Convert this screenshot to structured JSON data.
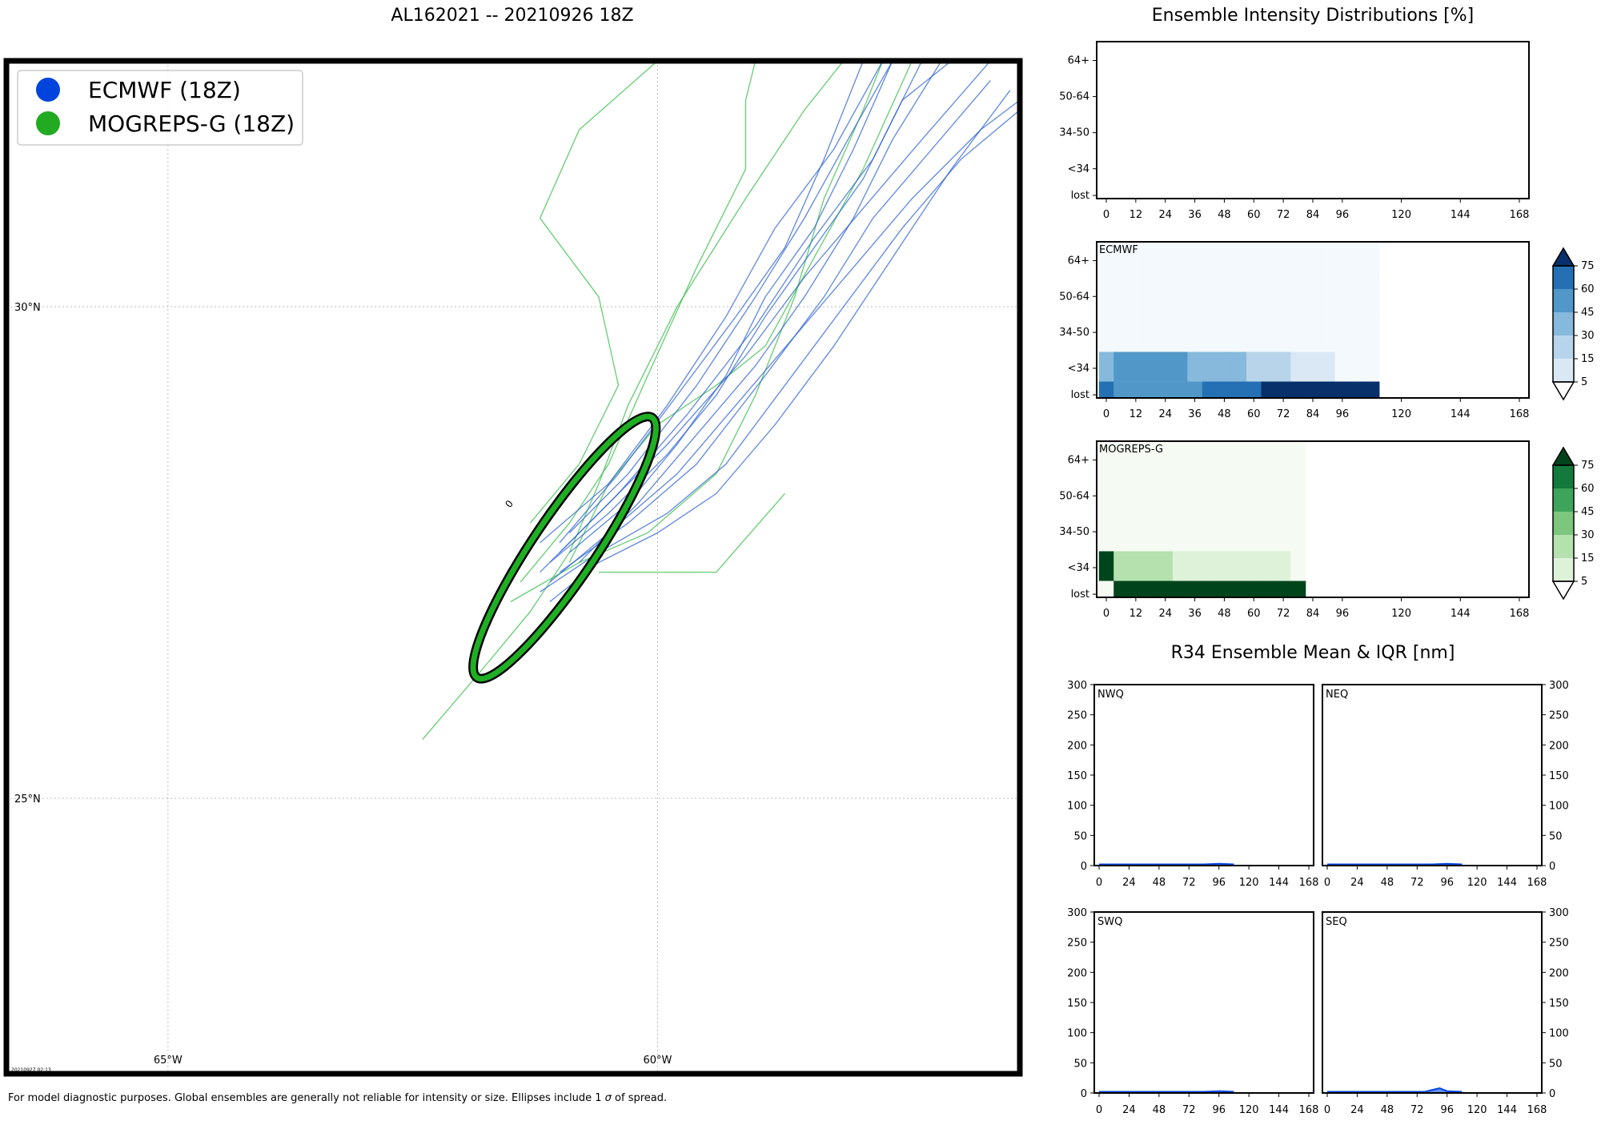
{
  "page": {
    "main_title": "AL162021 -- 20210926 18Z",
    "intensity_title": "Ensemble Intensity Distributions [%]",
    "r34_title": "R34 Ensemble Mean & IQR [nm]",
    "footnote_prefix": "For model diagnostic purposes. Global ensembles are generally not reliable for intensity or size. Ellipses include 1 ",
    "footnote_sigma": "σ",
    "footnote_suffix": " of spread.",
    "timestamp": "20210927 02:13"
  },
  "colors": {
    "ecmwf_track": "#2a5fd6",
    "ecmwf_marker": "#0044dd",
    "mogreps_track": "#33bb44",
    "mogreps_marker": "#22aa22",
    "ellipse_fill": "#1fae24"
  },
  "map": {
    "legend": [
      {
        "label": "ECMWF (18Z)",
        "color": "#0044dd"
      },
      {
        "label": "MOGREPS-G (18Z)",
        "color": "#22aa22"
      }
    ],
    "lat_labels": [
      {
        "value": 30,
        "label": "30°N"
      },
      {
        "value": 25,
        "label": "25°N"
      }
    ],
    "lon_labels": [
      {
        "value": -65,
        "label": "65°W"
      },
      {
        "value": -60,
        "label": "60°W"
      }
    ],
    "ellipse_label": "0",
    "ellipse": {
      "lon": -60.95,
      "lat": 27.55,
      "major_deg": 2.5,
      "minor_deg": 0.5,
      "angle": 40
    }
  },
  "chart_data": [
    {
      "type": "line",
      "id": "track_map",
      "title": "AL162021 -- 20210926 18Z",
      "xlim": [
        -66.65,
        -56.3
      ],
      "ylim": [
        22.2,
        32.5
      ],
      "series": [
        {
          "name": "ECMWF (18Z)",
          "tracks": [
            [
              [
                -61.2,
                27.3
              ],
              [
                -60.6,
                27.9
              ],
              [
                -59.9,
                28.6
              ],
              [
                -59.1,
                29.5
              ],
              [
                -58.5,
                30.3
              ],
              [
                -57.9,
                31.0
              ],
              [
                -57.3,
                31.7
              ],
              [
                -56.6,
                32.5
              ]
            ],
            [
              [
                -61.0,
                27.5
              ],
              [
                -60.4,
                28.1
              ],
              [
                -59.7,
                28.9
              ],
              [
                -59.0,
                29.8
              ],
              [
                -58.4,
                30.7
              ],
              [
                -57.8,
                31.5
              ],
              [
                -57.3,
                32.5
              ]
            ],
            [
              [
                -61.1,
                27.2
              ],
              [
                -60.5,
                27.7
              ],
              [
                -59.8,
                28.3
              ],
              [
                -59.2,
                29.0
              ],
              [
                -58.6,
                29.7
              ],
              [
                -58.0,
                30.4
              ],
              [
                -57.4,
                31.1
              ],
              [
                -56.7,
                31.8
              ],
              [
                -56.3,
                32.1
              ]
            ],
            [
              [
                -61.2,
                27.6
              ],
              [
                -60.5,
                28.2
              ],
              [
                -59.9,
                29.0
              ],
              [
                -59.3,
                29.9
              ],
              [
                -58.8,
                30.8
              ],
              [
                -58.2,
                31.6
              ],
              [
                -57.7,
                32.5
              ]
            ],
            [
              [
                -60.8,
                27.4
              ],
              [
                -60.2,
                28.0
              ],
              [
                -59.6,
                28.7
              ],
              [
                -59.0,
                29.4
              ],
              [
                -58.5,
                30.1
              ],
              [
                -58.0,
                30.9
              ],
              [
                -57.6,
                31.7
              ],
              [
                -57.1,
                32.5
              ]
            ],
            [
              [
                -61.1,
                27.0
              ],
              [
                -60.6,
                27.4
              ],
              [
                -60.0,
                27.7
              ],
              [
                -59.4,
                28.1
              ],
              [
                -58.8,
                28.8
              ],
              [
                -58.2,
                29.6
              ],
              [
                -57.6,
                30.5
              ],
              [
                -57.0,
                31.4
              ],
              [
                -56.4,
                32.2
              ]
            ],
            [
              [
                -60.9,
                27.7
              ],
              [
                -60.3,
                28.3
              ],
              [
                -59.6,
                29.2
              ],
              [
                -59.0,
                30.1
              ],
              [
                -58.5,
                30.9
              ],
              [
                -58.0,
                31.8
              ],
              [
                -57.6,
                32.5
              ]
            ],
            [
              [
                -61.0,
                27.3
              ],
              [
                -60.3,
                27.8
              ],
              [
                -59.6,
                28.4
              ],
              [
                -58.9,
                29.3
              ],
              [
                -58.3,
                30.1
              ],
              [
                -57.8,
                30.9
              ],
              [
                -57.2,
                31.6
              ],
              [
                -56.6,
                32.3
              ]
            ],
            [
              [
                -61.2,
                27.1
              ],
              [
                -60.6,
                27.5
              ],
              [
                -59.9,
                27.9
              ],
              [
                -59.3,
                28.4
              ],
              [
                -58.7,
                29.2
              ],
              [
                -58.1,
                30.0
              ],
              [
                -57.5,
                30.8
              ],
              [
                -56.9,
                31.5
              ],
              [
                -56.3,
                32.0
              ]
            ],
            [
              [
                -61.0,
                27.6
              ],
              [
                -60.4,
                28.3
              ],
              [
                -59.8,
                29.1
              ],
              [
                -59.2,
                29.9
              ],
              [
                -58.7,
                30.6
              ],
              [
                -58.3,
                31.5
              ],
              [
                -57.9,
                32.5
              ]
            ],
            [
              [
                -60.9,
                27.5
              ],
              [
                -60.3,
                28.0
              ],
              [
                -59.8,
                28.6
              ],
              [
                -59.3,
                29.3
              ],
              [
                -58.9,
                30.1
              ],
              [
                -58.4,
                30.8
              ],
              [
                -58.0,
                31.6
              ],
              [
                -57.6,
                32.5
              ]
            ],
            [
              [
                -61.1,
                27.4
              ],
              [
                -60.5,
                27.9
              ],
              [
                -59.9,
                28.5
              ],
              [
                -59.4,
                29.1
              ],
              [
                -58.9,
                29.9
              ],
              [
                -58.4,
                30.6
              ],
              [
                -57.9,
                31.3
              ],
              [
                -57.5,
                32.1
              ],
              [
                -57.0,
                32.5
              ]
            ]
          ]
        },
        {
          "name": "MOGREPS-G (18Z)",
          "tracks": [
            [
              [
                -62.4,
                25.6
              ],
              [
                -61.8,
                26.3
              ],
              [
                -61.3,
                26.9
              ],
              [
                -60.9,
                27.5
              ],
              [
                -60.6,
                28.2
              ],
              [
                -60.3,
                29.0
              ],
              [
                -59.8,
                30.0
              ],
              [
                -59.1,
                31.1
              ],
              [
                -58.5,
                32.0
              ],
              [
                -58.1,
                32.5
              ]
            ],
            [
              [
                -61.4,
                27.2
              ],
              [
                -60.9,
                27.8
              ],
              [
                -60.5,
                28.4
              ],
              [
                -60.1,
                29.3
              ],
              [
                -59.6,
                30.4
              ],
              [
                -59.1,
                31.4
              ],
              [
                -59.1,
                32.1
              ],
              [
                -59.0,
                32.5
              ]
            ],
            [
              [
                -61.5,
                27.0
              ],
              [
                -60.8,
                27.4
              ],
              [
                -60.1,
                27.7
              ],
              [
                -59.4,
                28.3
              ],
              [
                -59.0,
                29.1
              ],
              [
                -58.6,
                30.1
              ],
              [
                -58.3,
                31.1
              ],
              [
                -57.9,
                32.0
              ],
              [
                -57.7,
                32.5
              ]
            ],
            [
              [
                -61.3,
                27.8
              ],
              [
                -60.8,
                28.4
              ],
              [
                -60.4,
                29.2
              ],
              [
                -60.6,
                30.1
              ],
              [
                -61.2,
                30.9
              ],
              [
                -60.8,
                31.8
              ],
              [
                -60.0,
                32.5
              ]
            ],
            [
              [
                -60.9,
                27.4
              ],
              [
                -60.5,
                28.2
              ],
              [
                -60.0,
                28.8
              ],
              [
                -59.4,
                29.2
              ],
              [
                -58.9,
                29.6
              ],
              [
                -58.4,
                30.5
              ],
              [
                -57.9,
                31.4
              ],
              [
                -57.4,
                32.5
              ]
            ],
            [
              [
                -60.6,
                27.3
              ],
              [
                -59.4,
                27.3
              ],
              [
                -58.7,
                28.1
              ]
            ]
          ]
        }
      ]
    },
    {
      "type": "heatmap",
      "id": "intensity_ecmwf",
      "title": "ECMWF",
      "categories": [
        "lost",
        "<34",
        "34-50",
        "50-64",
        "64+"
      ],
      "x_ticks": [
        0,
        12,
        24,
        36,
        48,
        60,
        72,
        84,
        96,
        120,
        144,
        168
      ],
      "bin_width_hours": 6,
      "rows": {
        "64+": [
          2,
          2,
          2,
          2,
          2,
          2,
          2,
          2,
          2,
          2,
          2,
          2,
          2,
          2,
          2,
          2,
          2,
          2,
          2
        ],
        "50-64": [
          2,
          2,
          2,
          2,
          2,
          2,
          2,
          2,
          2,
          2,
          2,
          2,
          2,
          2,
          2,
          2,
          2,
          2,
          2
        ],
        "34-50": [
          2,
          2,
          2,
          2,
          2,
          2,
          2,
          2,
          2,
          2,
          2,
          2,
          2,
          2,
          2,
          2,
          2,
          2,
          2
        ],
        "<34": [
          35,
          50,
          50,
          50,
          50,
          50,
          38,
          38,
          38,
          38,
          22,
          22,
          22,
          14,
          14,
          14,
          2,
          2,
          2
        ],
        "lost": [
          68,
          50,
          50,
          50,
          50,
          50,
          50,
          66,
          66,
          66,
          66,
          80,
          80,
          80,
          80,
          80,
          80,
          80,
          80
        ]
      },
      "colorbar": {
        "levels": [
          5,
          15,
          30,
          45,
          60,
          75
        ],
        "colors": [
          "#dae8f5",
          "#b8d4ea",
          "#86b9dc",
          "#5198c9",
          "#2570b4",
          "#0d4a93"
        ],
        "over": "#08306b",
        "under": "#ffffff",
        "base": "#f4f9fe"
      }
    },
    {
      "type": "heatmap",
      "id": "intensity_mogreps",
      "title": "MOGREPS-G",
      "categories": [
        "lost",
        "<34",
        "34-50",
        "50-64",
        "64+"
      ],
      "x_ticks": [
        0,
        12,
        24,
        36,
        48,
        60,
        72,
        84,
        96,
        120,
        144,
        168
      ],
      "bin_width_hours": 6,
      "rows": {
        "64+": [
          2,
          2,
          2,
          2,
          2,
          2,
          2,
          2,
          2,
          2,
          2,
          2,
          2,
          2
        ],
        "50-64": [
          2,
          2,
          2,
          2,
          2,
          2,
          2,
          2,
          2,
          2,
          2,
          2,
          2,
          2
        ],
        "34-50": [
          2,
          2,
          2,
          2,
          2,
          2,
          2,
          2,
          2,
          2,
          2,
          2,
          2,
          2
        ],
        "<34": [
          90,
          25,
          25,
          25,
          25,
          12,
          12,
          12,
          12,
          12,
          12,
          12,
          12,
          2
        ],
        "lost": [
          2,
          90,
          90,
          90,
          90,
          90,
          90,
          90,
          90,
          90,
          90,
          90,
          90,
          90
        ]
      },
      "colorbar": {
        "levels": [
          5,
          15,
          30,
          45,
          60,
          75
        ],
        "colors": [
          "#def2da",
          "#b4e1ad",
          "#7cc67e",
          "#3fa45b",
          "#13793c",
          "#00531f"
        ],
        "over": "#00441b",
        "under": "#ffffff",
        "base": "#f5fbf3"
      }
    },
    {
      "type": "line",
      "id": "r34_quadrants",
      "x_ticks": [
        0,
        24,
        48,
        72,
        96,
        120,
        144,
        168
      ],
      "ylim": [
        0,
        300
      ],
      "y_ticks": [
        0,
        50,
        100,
        150,
        200,
        250,
        300
      ],
      "panels": [
        {
          "title": "NWQ",
          "ecmwf": [
            [
              0,
              2
            ],
            [
              84,
              2
            ],
            [
              96,
              3
            ],
            [
              108,
              2
            ]
          ],
          "mogreps": [
            [
              0,
              2
            ],
            [
              78,
              2
            ]
          ]
        },
        {
          "title": "NEQ",
          "ecmwf": [
            [
              0,
              2
            ],
            [
              84,
              2
            ],
            [
              96,
              3
            ],
            [
              108,
              2
            ]
          ],
          "mogreps": [
            [
              0,
              2
            ],
            [
              78,
              2
            ]
          ]
        },
        {
          "title": "SWQ",
          "ecmwf": [
            [
              0,
              2
            ],
            [
              84,
              2
            ],
            [
              96,
              3
            ],
            [
              108,
              2
            ]
          ],
          "mogreps": [
            [
              0,
              2
            ],
            [
              78,
              2
            ]
          ]
        },
        {
          "title": "SEQ",
          "ecmwf": [
            [
              0,
              2
            ],
            [
              78,
              2
            ],
            [
              90,
              8
            ],
            [
              96,
              3
            ],
            [
              108,
              2
            ]
          ],
          "mogreps": [
            [
              0,
              2
            ],
            [
              78,
              2
            ]
          ]
        }
      ]
    }
  ]
}
